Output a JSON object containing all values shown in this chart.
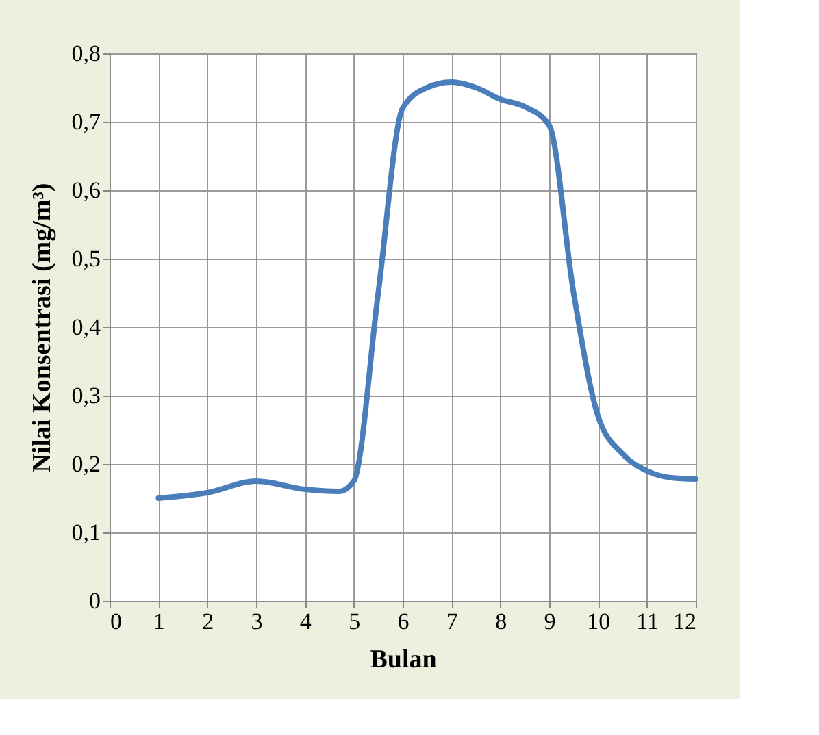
{
  "chart_data": {
    "type": "line",
    "xlabel": "Bulan",
    "ylabel": "Nilai Konsentrasi (mg/m³)",
    "x": [
      1,
      2,
      3,
      4,
      4.7,
      5,
      5.5,
      6,
      6.5,
      7,
      7.5,
      8,
      8.5,
      9,
      9.5,
      10,
      10.5,
      11,
      11.5,
      12
    ],
    "series": [
      {
        "color": "#4a7ebb",
        "values": [
          0.15,
          0.158,
          0.175,
          0.163,
          0.16,
          0.175,
          0.45,
          0.72,
          0.75,
          0.758,
          0.75,
          0.733,
          0.722,
          0.695,
          0.45,
          0.27,
          0.215,
          0.19,
          0.18,
          0.178
        ]
      }
    ],
    "xlim": [
      0,
      12
    ],
    "xticks": [
      0,
      1,
      2,
      3,
      4,
      5,
      6,
      7,
      8,
      9,
      10,
      11,
      12
    ],
    "ylim": [
      0,
      0.8
    ],
    "yticks": [
      {
        "value": 0,
        "label": "0"
      },
      {
        "value": 0.1,
        "label": "0,1"
      },
      {
        "value": 0.2,
        "label": "0,2"
      },
      {
        "value": 0.3,
        "label": "0,3"
      },
      {
        "value": 0.4,
        "label": "0,4"
      },
      {
        "value": 0.5,
        "label": "0,5"
      },
      {
        "value": 0.6,
        "label": "0,6"
      },
      {
        "value": 0.7,
        "label": "0,7"
      },
      {
        "value": 0.8,
        "label": "0,8"
      }
    ],
    "grid": true,
    "marker": "none",
    "line_style": "solid"
  }
}
